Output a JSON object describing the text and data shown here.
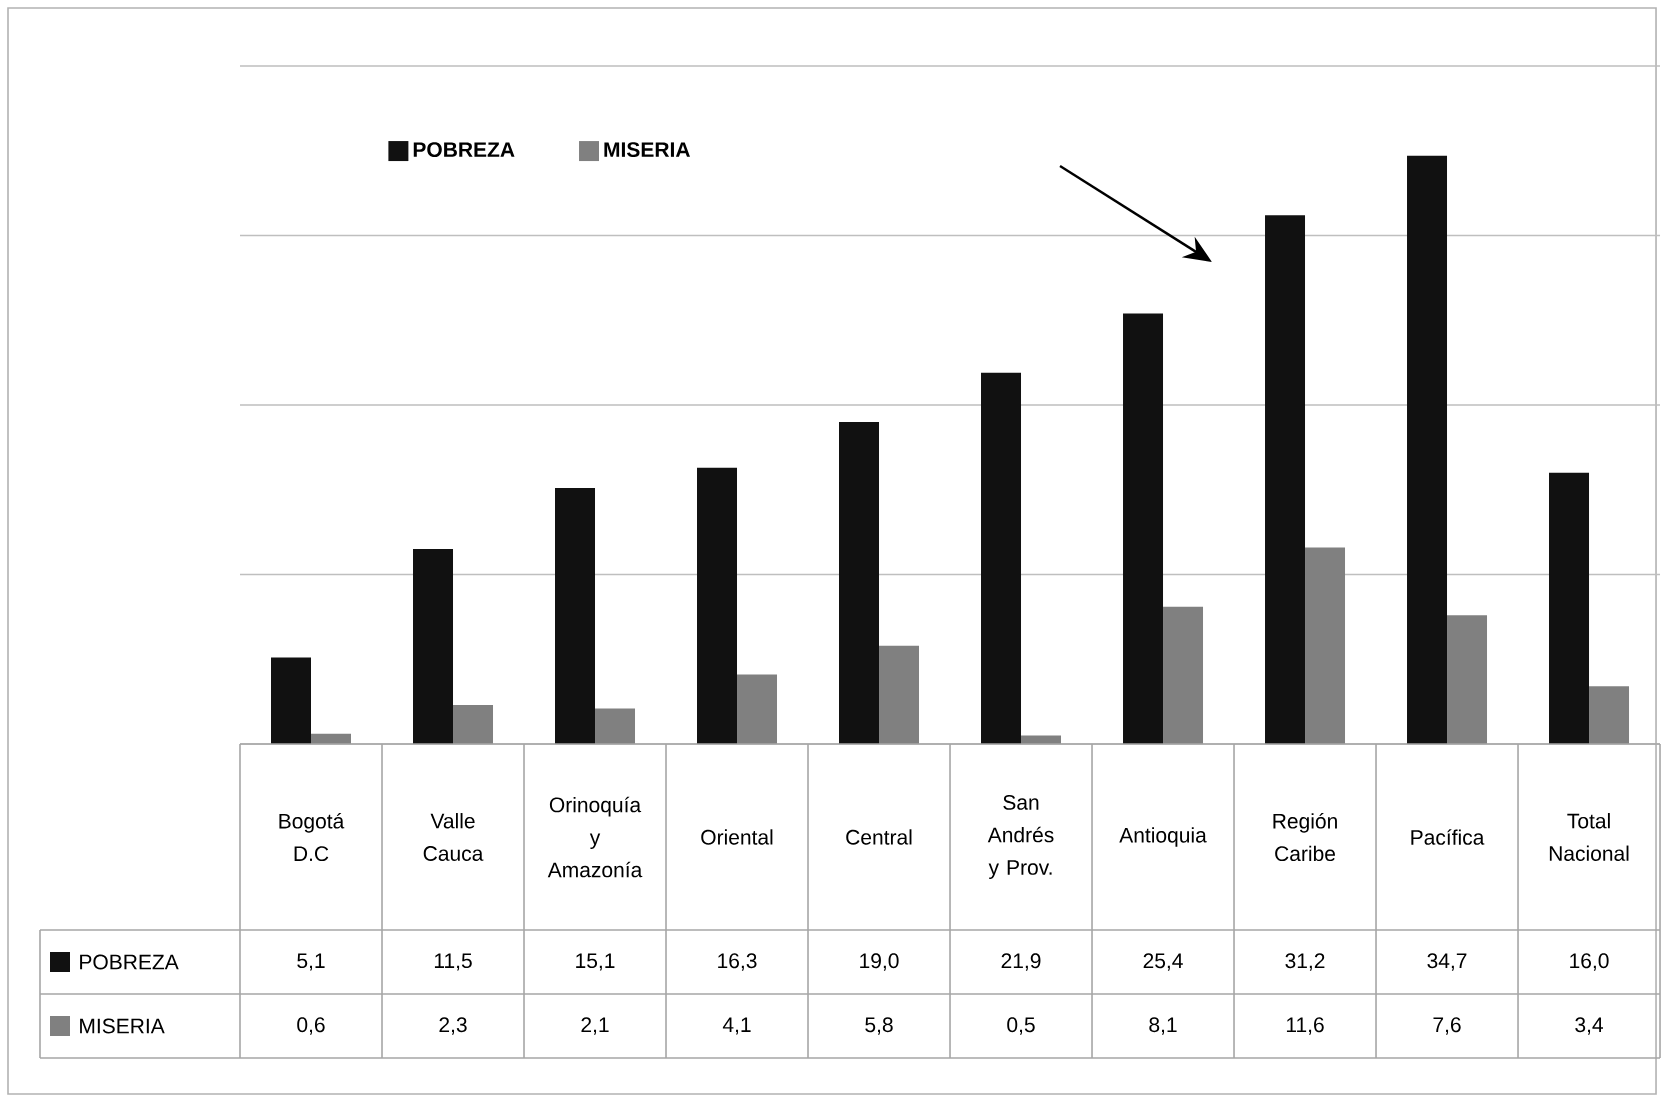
{
  "chart_data": {
    "type": "bar",
    "categories": [
      "Bogotá D.C",
      "Valle Cauca",
      "Orinoquía y Amazonía",
      "Oriental",
      "Central",
      "San Andrés y Prov.",
      "Antioquia",
      "Región Caribe",
      "Pacífica",
      "Total Nacional"
    ],
    "series": [
      {
        "name": "POBREZA",
        "color": "#111111",
        "values": [
          5.1,
          11.5,
          15.1,
          16.3,
          19.0,
          21.9,
          25.4,
          31.2,
          34.7,
          16.0
        ],
        "value_labels": [
          "5,1",
          "11,5",
          "15,1",
          "16,3",
          "19,0",
          "21,9",
          "25,4",
          "31,2",
          "34,7",
          "16,0"
        ]
      },
      {
        "name": "MISERIA",
        "color": "#808080",
        "values": [
          0.6,
          2.3,
          2.1,
          4.1,
          5.8,
          0.5,
          8.1,
          11.6,
          7.6,
          3.4
        ],
        "value_labels": [
          "0,6",
          "2,3",
          "2,1",
          "4,1",
          "5,8",
          "0,5",
          "8,1",
          "11,6",
          "7,6",
          "3,4"
        ]
      }
    ],
    "ylim": [
      0,
      40
    ],
    "yticks": [
      0,
      10,
      20,
      30,
      40
    ],
    "grid": "y",
    "tick_labels": false,
    "legend": "left"
  }
}
